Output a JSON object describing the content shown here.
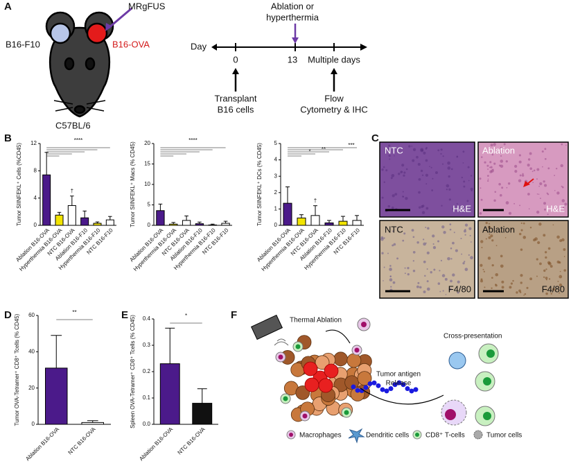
{
  "panels": {
    "a": "A",
    "b": "B",
    "c": "C",
    "d": "D",
    "e": "E",
    "f": "F"
  },
  "schematic": {
    "mrgfus": "MRgFUS",
    "b16f10": "B16-F10",
    "b16ova": "B16-OVA",
    "strain": "C57BL/6",
    "day": "Day",
    "day0": "0",
    "day13": "13",
    "multiple": "Multiple days",
    "treatment": [
      "Ablation or",
      "hyperthermia"
    ],
    "transplant": [
      "Transplant",
      "B16 cells"
    ],
    "readout": [
      "Flow",
      "Cytometry & IHC"
    ]
  },
  "histology": {
    "ntc": "NTC",
    "ablation": "Ablation",
    "he": "H&E",
    "f480": "F4/80"
  },
  "diagram": {
    "thermal": "Thermal Ablation",
    "cross": "Cross-presentation",
    "release": [
      "Tumor antigen",
      "Release"
    ],
    "legend": [
      "Macrophages",
      "Dendritic cells",
      "CD8⁺ T-cells",
      "Tumor cells"
    ]
  },
  "chart_data": [
    {
      "type": "bar",
      "ylabel": "Tumor SIINFEKL⁺ Cells (%CD45)",
      "categories": [
        "Ablation B16-OVA",
        "Hyperthermia B16-OVA",
        "NTC B16-OVA",
        "Ablation B16-F10",
        "Hyperthermia B16-F10",
        "NTC B16-F10"
      ],
      "values": [
        7.4,
        1.5,
        2.9,
        1.1,
        0.3,
        0.8
      ],
      "errors": [
        3.3,
        0.4,
        1.4,
        1.0,
        0.2,
        0.5
      ],
      "colors": [
        "#4b1a8a",
        "#f2e400",
        "#ffffff",
        "#4b1a8a",
        "#f2e400",
        "#ffffff"
      ],
      "ylim": [
        0,
        12
      ],
      "yticks": [
        0,
        4,
        8,
        12
      ],
      "significance": [
        "****"
      ],
      "annotations": [
        "†"
      ]
    },
    {
      "type": "bar",
      "ylabel": "Tumor SIINFEKL⁺ Macs (% CD45)",
      "categories": [
        "Ablation B16-OVA",
        "Hyperthermia B16-OVA",
        "NTC B16-OVA",
        "Ablation B16-F10",
        "Hyperthermia B16-F10",
        "NTC B16-F10"
      ],
      "values": [
        3.6,
        0.3,
        1.2,
        0.4,
        0.1,
        0.5
      ],
      "errors": [
        1.6,
        0.4,
        1.1,
        0.4,
        0.2,
        0.5
      ],
      "colors": [
        "#4b1a8a",
        "#f2e400",
        "#ffffff",
        "#4b1a8a",
        "#f2e400",
        "#ffffff"
      ],
      "ylim": [
        0,
        20
      ],
      "yticks": [
        0,
        5,
        10,
        15,
        20
      ],
      "significance": [
        "****"
      ]
    },
    {
      "type": "bar",
      "ylabel": "Tumor SIINFEKL⁺ DCs (% CD45)",
      "categories": [
        "Ablation B16-OVA",
        "Hyperthermia B16-OVA",
        "NTC B16-OVA",
        "Ablation B16-F10",
        "Hyperthermia B16-F10",
        "NTC B16-F10"
      ],
      "values": [
        1.35,
        0.45,
        0.6,
        0.15,
        0.25,
        0.3
      ],
      "errors": [
        1.0,
        0.2,
        0.6,
        0.15,
        0.3,
        0.3
      ],
      "colors": [
        "#4b1a8a",
        "#f2e400",
        "#ffffff",
        "#4b1a8a",
        "#f2e400",
        "#ffffff"
      ],
      "ylim": [
        0,
        5
      ],
      "yticks": [
        0,
        1,
        2,
        3,
        4,
        5
      ],
      "significance": [
        "*",
        "**",
        "***"
      ],
      "annotations": [
        "†"
      ]
    },
    {
      "type": "bar",
      "ylabel": "Tumor OVA-Tetramer⁺ CD8⁺ Tcells (% CD45)",
      "categories": [
        "Ablation B16-OVA",
        "NTC B16-OVA"
      ],
      "values": [
        31,
        1
      ],
      "errors": [
        18,
        1
      ],
      "colors": [
        "#4b1a8a",
        "#ffffff"
      ],
      "ylim": [
        0,
        60
      ],
      "yticks": [
        0,
        20,
        40,
        60
      ],
      "significance": [
        "**"
      ]
    },
    {
      "type": "bar",
      "ylabel": "Spleen OVA-Tetramer⁺ CD8⁺ Tcells (% CD45)",
      "categories": [
        "Ablation B16-OVA",
        "NTC B16-OVA"
      ],
      "values": [
        0.23,
        0.08
      ],
      "errors": [
        0.135,
        0.055
      ],
      "colors": [
        "#4b1a8a",
        "#111111"
      ],
      "ylim": [
        0,
        0.4
      ],
      "yticks": [
        {
          "value": 0,
          "label": "0.0"
        },
        0.1,
        0.2,
        0.3,
        0.4
      ],
      "significance": [
        "*"
      ]
    }
  ]
}
